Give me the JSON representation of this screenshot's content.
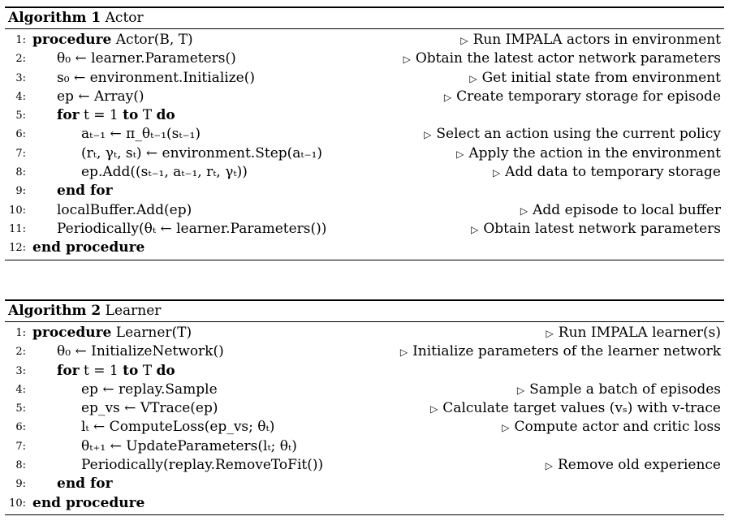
{
  "algorithms": [
    {
      "title_label": "Algorithm 1",
      "title_name": "Actor",
      "lines": [
        {
          "num": "1:",
          "code": "procedure Actor(B, T)",
          "comment": "Run IMPALA actors in environment",
          "indent": 0
        },
        {
          "num": "2:",
          "code": "θ₀ ← learner.Parameters()",
          "comment": "Obtain the latest actor network parameters",
          "indent": 1
        },
        {
          "num": "3:",
          "code": "s₀ ← environment.Initialize()",
          "comment": "Get initial state from environment",
          "indent": 1
        },
        {
          "num": "4:",
          "code": "ep ← Array()",
          "comment": "Create temporary storage for episode",
          "indent": 1
        },
        {
          "num": "5:",
          "code": "for t = 1 to T do",
          "comment": "",
          "indent": 1
        },
        {
          "num": "6:",
          "code": "aₜ₋₁ ← π_θₜ₋₁(sₜ₋₁)",
          "comment": "Select an action using the current policy",
          "indent": 2
        },
        {
          "num": "7:",
          "code": "(rₜ, γₜ, sₜ) ← environment.Step(aₜ₋₁)",
          "comment": "Apply the action in the environment",
          "indent": 2
        },
        {
          "num": "8:",
          "code": "ep.Add((sₜ₋₁, aₜ₋₁, rₜ, γₜ))",
          "comment": "Add data to temporary storage",
          "indent": 2
        },
        {
          "num": "9:",
          "code": "end for",
          "comment": "",
          "indent": 1
        },
        {
          "num": "10:",
          "code": "localBuffer.Add(ep)",
          "comment": "Add episode to local buffer",
          "indent": 1
        },
        {
          "num": "11:",
          "code": "Periodically(θₜ ← learner.Parameters())",
          "comment": "Obtain latest network parameters",
          "indent": 1
        },
        {
          "num": "12:",
          "code": "end procedure",
          "comment": "",
          "indent": 0
        }
      ]
    },
    {
      "title_label": "Algorithm 2",
      "title_name": "Learner",
      "lines": [
        {
          "num": "1:",
          "code": "procedure Learner(T)",
          "comment": "Run IMPALA learner(s)",
          "indent": 0
        },
        {
          "num": "2:",
          "code": "θ₀ ← InitializeNetwork()",
          "comment": "Initialize parameters of the learner network",
          "indent": 1
        },
        {
          "num": "3:",
          "code": "for t = 1 to T do",
          "comment": "",
          "indent": 1
        },
        {
          "num": "4:",
          "code": "ep ← replay.Sample",
          "comment": "Sample a batch of episodes",
          "indent": 2
        },
        {
          "num": "5:",
          "code": "ep_vs ← VTrace(ep)",
          "comment": "Calculate target values (vₛ) with v-trace",
          "indent": 2
        },
        {
          "num": "6:",
          "code": "lₜ ← ComputeLoss(ep_vs; θₜ)",
          "comment": "Compute actor and critic loss",
          "indent": 2
        },
        {
          "num": "7:",
          "code": "θₜ₊₁ ← UpdateParameters(lₜ; θₜ)",
          "comment": "",
          "indent": 2
        },
        {
          "num": "8:",
          "code": "Periodically(replay.RemoveToFit())",
          "comment": "Remove old experience",
          "indent": 2
        },
        {
          "num": "9:",
          "code": "end for",
          "comment": "",
          "indent": 1
        },
        {
          "num": "10:",
          "code": "end procedure",
          "comment": "",
          "indent": 0
        }
      ]
    }
  ]
}
